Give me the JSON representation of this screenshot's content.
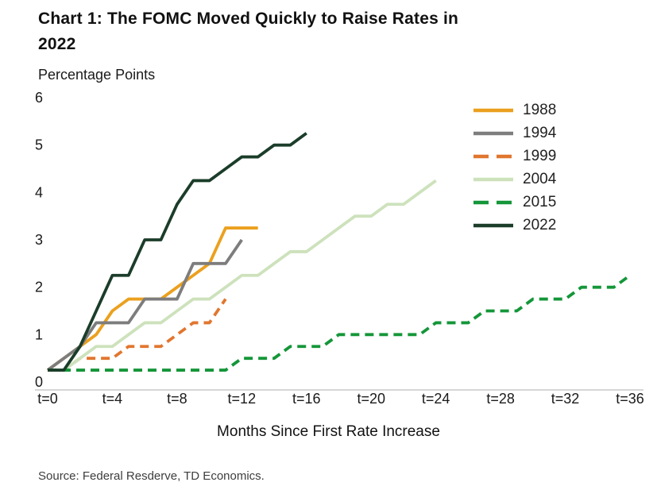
{
  "title": {
    "line1": "Chart 1: The FOMC Moved Quickly to Raise Rates in",
    "line2": "2022"
  },
  "source": "Source: Federal Resderve, TD Economics.",
  "colors": {
    "axis_line": "#c9c9c9",
    "text": "#1a1a1a"
  },
  "chart_data": {
    "type": "line",
    "title": "Chart 1: The FOMC Moved Quickly to Raise Rates in 2022",
    "xlabel": "Months Since First Rate Increase",
    "ylabel": "Percentage Points",
    "xlim": [
      0,
      36
    ],
    "ylim": [
      0,
      6
    ],
    "grid": false,
    "legend_position": "top-right",
    "x_ticks": [
      "t=0",
      "t=4",
      "t=8",
      "t=12",
      "t=16",
      "t=20",
      "t=24",
      "t=28",
      "t=32",
      "t=36"
    ],
    "x_tick_values": [
      0,
      4,
      8,
      12,
      16,
      20,
      24,
      28,
      32,
      36
    ],
    "y_ticks": [
      0,
      1,
      2,
      3,
      4,
      5,
      6
    ],
    "series": [
      {
        "name": "1988",
        "color": "#EBA01E",
        "dash": "solid",
        "x": [
          0,
          1,
          2,
          3,
          4,
          5,
          6,
          7,
          8,
          9,
          10,
          11,
          12,
          13
        ],
        "y": [
          0.25,
          0.5,
          0.75,
          1.0,
          1.5,
          1.75,
          1.75,
          1.75,
          2.0,
          2.25,
          2.5,
          3.25,
          3.25,
          3.25
        ]
      },
      {
        "name": "1994",
        "color": "#7d7d7d",
        "dash": "solid",
        "x": [
          0,
          1,
          2,
          3,
          4,
          5,
          6,
          7,
          8,
          9,
          10,
          11,
          12
        ],
        "y": [
          0.25,
          0.5,
          0.75,
          1.25,
          1.25,
          1.25,
          1.75,
          1.75,
          1.75,
          2.5,
          2.5,
          2.5,
          3.0
        ]
      },
      {
        "name": "1999",
        "color": "#E1762F",
        "dash": "dashed",
        "x": [
          0,
          1,
          2,
          3,
          4,
          5,
          6,
          7,
          8,
          9,
          10,
          11
        ],
        "y": [
          0.25,
          0.25,
          0.5,
          0.5,
          0.5,
          0.75,
          0.75,
          0.75,
          1.0,
          1.25,
          1.25,
          1.75
        ]
      },
      {
        "name": "2004",
        "color": "#cde2bc",
        "dash": "solid",
        "x": [
          0,
          1,
          2,
          3,
          4,
          5,
          6,
          7,
          8,
          9,
          10,
          11,
          12,
          13,
          14,
          15,
          16,
          17,
          18,
          19,
          20,
          21,
          22,
          23,
          24
        ],
        "y": [
          0.25,
          0.25,
          0.5,
          0.75,
          0.75,
          1.0,
          1.25,
          1.25,
          1.5,
          1.75,
          1.75,
          2.0,
          2.25,
          2.25,
          2.5,
          2.75,
          2.75,
          3.0,
          3.25,
          3.5,
          3.5,
          3.75,
          3.75,
          4.0,
          4.25
        ]
      },
      {
        "name": "2015",
        "color": "#149639",
        "dash": "dashed",
        "x": [
          0,
          1,
          2,
          3,
          4,
          5,
          6,
          7,
          8,
          9,
          10,
          11,
          12,
          13,
          14,
          15,
          16,
          17,
          18,
          19,
          20,
          21,
          22,
          23,
          24,
          25,
          26,
          27,
          28,
          29,
          30,
          31,
          32,
          33,
          34,
          35,
          36
        ],
        "y": [
          0.25,
          0.25,
          0.25,
          0.25,
          0.25,
          0.25,
          0.25,
          0.25,
          0.25,
          0.25,
          0.25,
          0.25,
          0.5,
          0.5,
          0.5,
          0.75,
          0.75,
          0.75,
          1.0,
          1.0,
          1.0,
          1.0,
          1.0,
          1.0,
          1.25,
          1.25,
          1.25,
          1.5,
          1.5,
          1.5,
          1.75,
          1.75,
          1.75,
          2.0,
          2.0,
          2.0,
          2.25
        ]
      },
      {
        "name": "2022",
        "color": "#1b3d2a",
        "dash": "solid",
        "x": [
          0,
          1,
          2,
          3,
          4,
          5,
          6,
          7,
          8,
          9,
          10,
          11,
          12,
          13,
          14,
          15,
          16
        ],
        "y": [
          0.25,
          0.25,
          0.75,
          1.5,
          2.25,
          2.25,
          3.0,
          3.0,
          3.75,
          4.25,
          4.25,
          4.5,
          4.75,
          4.75,
          5.0,
          5.0,
          5.25
        ]
      }
    ]
  }
}
